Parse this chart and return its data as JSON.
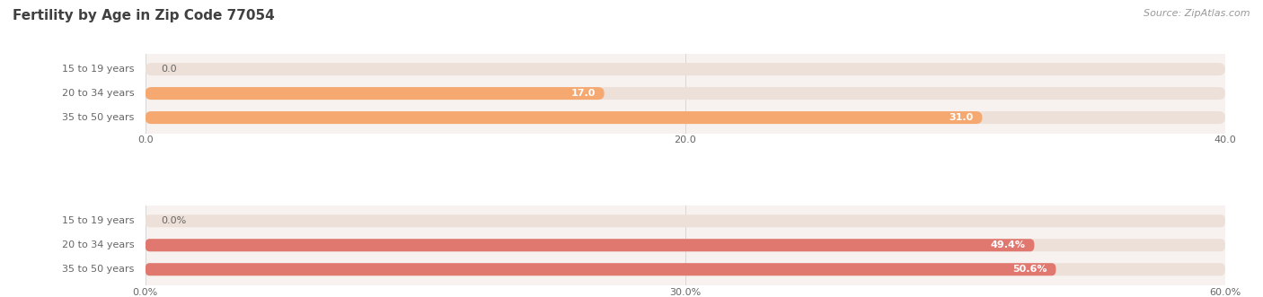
{
  "title": "Fertility by Age in Zip Code 77054",
  "source": "Source: ZipAtlas.com",
  "top_chart": {
    "categories": [
      "15 to 19 years",
      "20 to 34 years",
      "35 to 50 years"
    ],
    "values": [
      0.0,
      17.0,
      31.0
    ],
    "xlim": [
      0,
      40
    ],
    "xticks": [
      0.0,
      20.0,
      40.0
    ],
    "xtick_labels": [
      "0.0",
      "20.0",
      "40.0"
    ],
    "bar_color": "#F5A870",
    "bg_track_color": "#EDE0D8"
  },
  "bottom_chart": {
    "categories": [
      "15 to 19 years",
      "20 to 34 years",
      "35 to 50 years"
    ],
    "values": [
      0.0,
      49.4,
      50.6
    ],
    "xlim": [
      0,
      60
    ],
    "xticks": [
      0.0,
      30.0,
      60.0
    ],
    "xtick_labels": [
      "0.0%",
      "30.0%",
      "60.0%"
    ],
    "bar_color": "#E07870",
    "bg_track_color": "#EDE0D8"
  },
  "title_color": "#404040",
  "source_color": "#999999",
  "label_color": "#666666",
  "value_color_inside": "#FFFFFF",
  "value_color_outside": "#666666",
  "bg_white": "#FFFFFF",
  "axes_bg": "#F7F2F0",
  "bar_height": 0.52,
  "title_fontsize": 11,
  "label_fontsize": 8,
  "value_fontsize": 8,
  "tick_fontsize": 8,
  "source_fontsize": 8
}
